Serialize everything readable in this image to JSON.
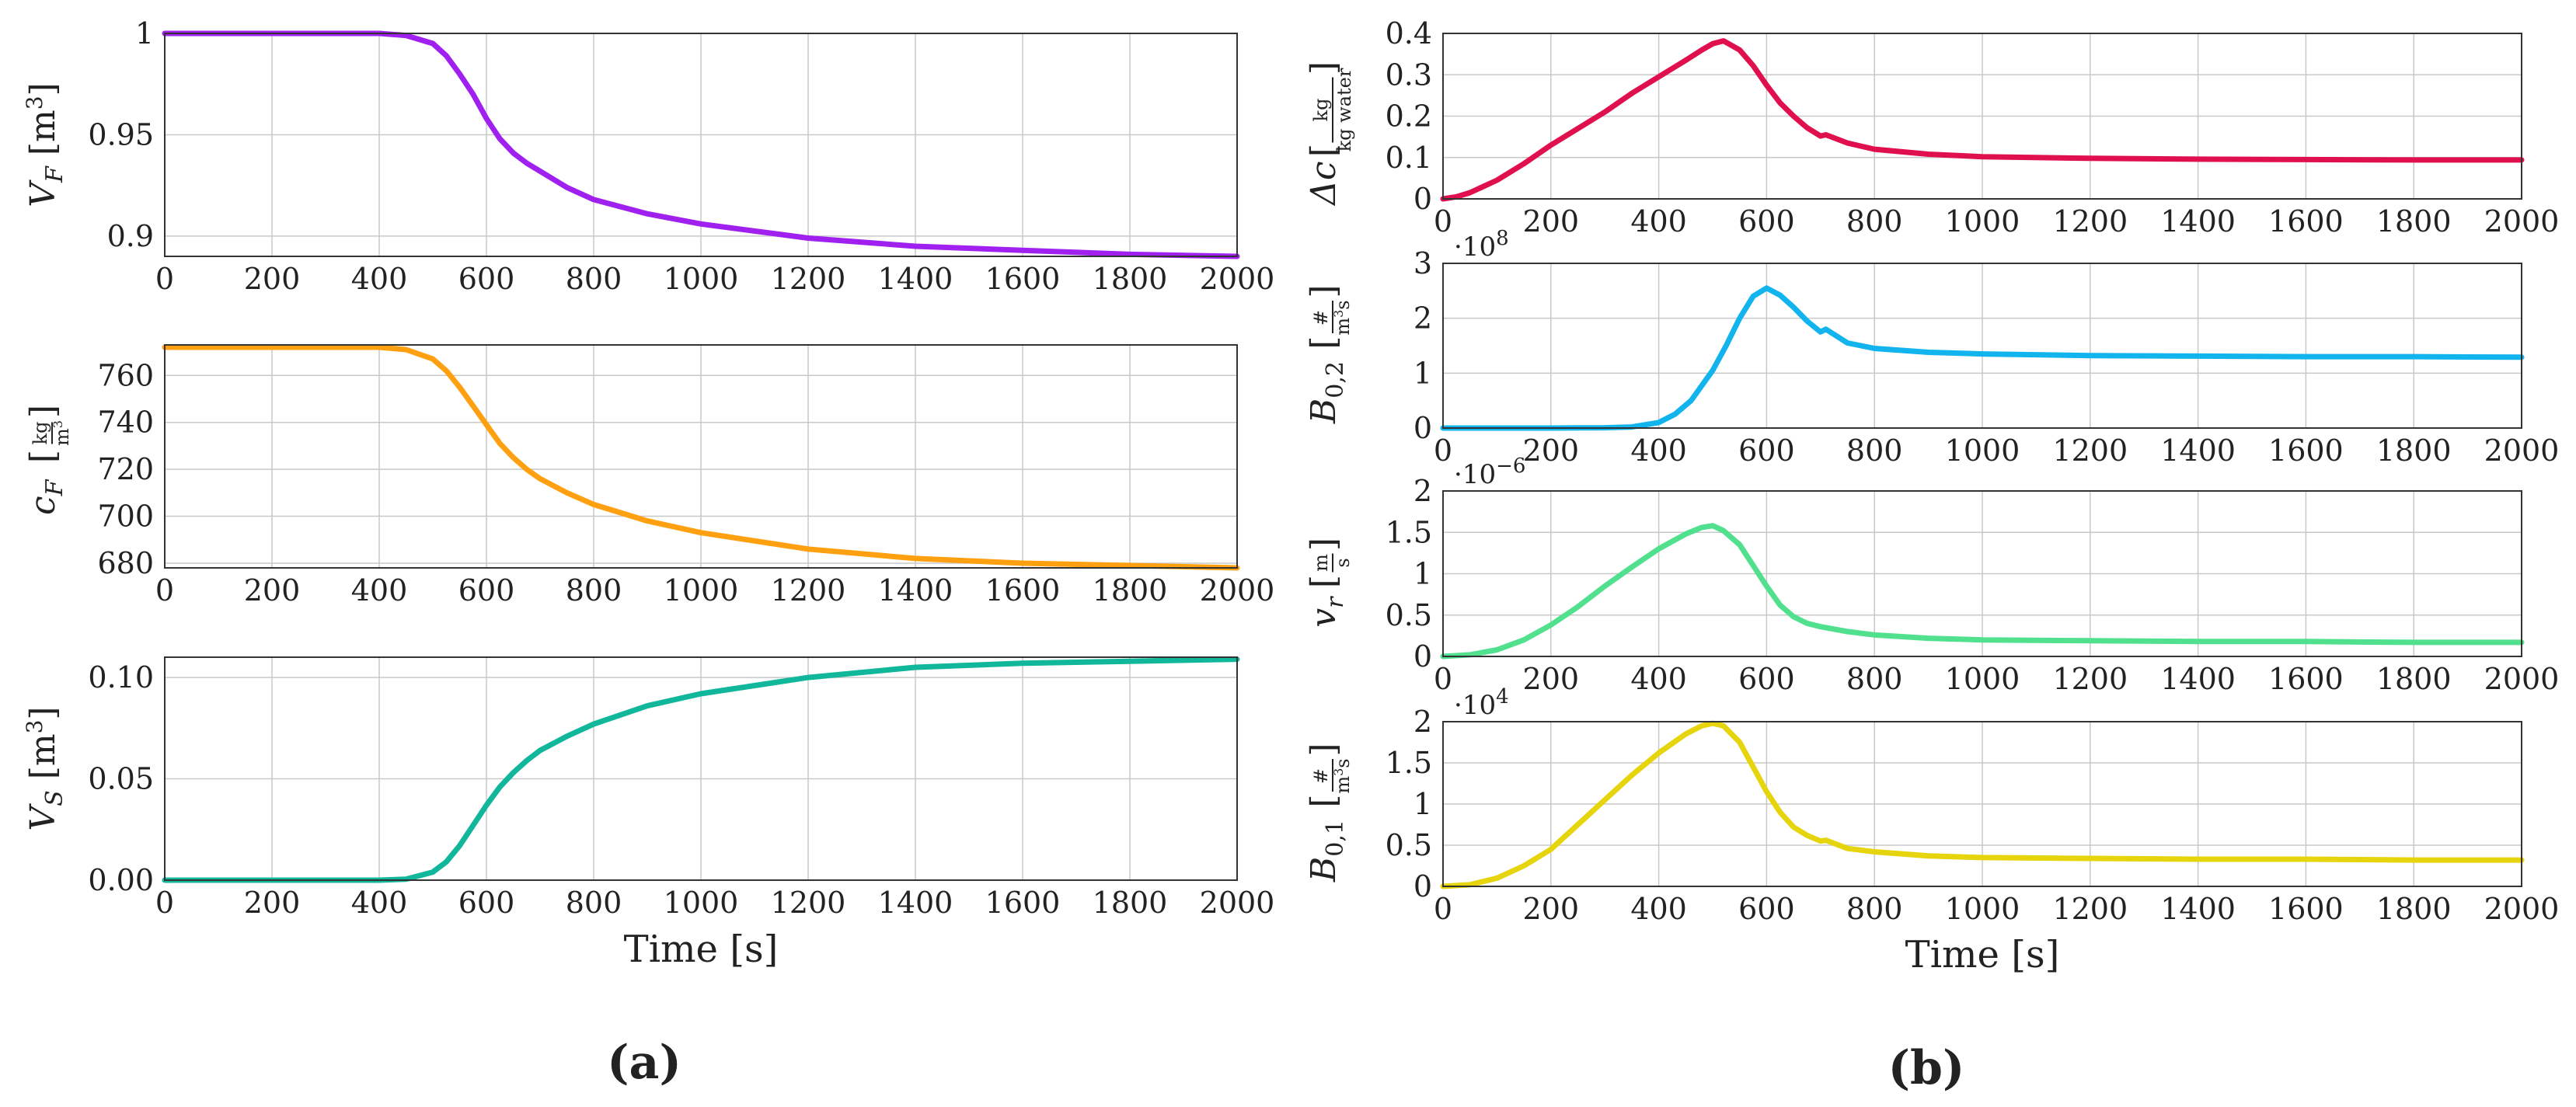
{
  "figure": {
    "panel_labels": [
      "(a)",
      "(b)"
    ],
    "x_title": "Time [s]",
    "colors": {
      "VF": "#a020f0",
      "cF": "#ffa010",
      "VS": "#10b79b",
      "dc": "#e0104e",
      "B02": "#12b4ee",
      "vr": "#50e08e",
      "B01": "#e6d40c",
      "grid": "#c8c8c8",
      "axis": "#333333"
    }
  },
  "chart_data": [
    {
      "id": "VF",
      "type": "line",
      "panel": "(a)",
      "ylabel": "V_F [m³]",
      "ylabel_parts": [
        "V",
        "F",
        "[m",
        "3",
        "]"
      ],
      "xlim": [
        0,
        2000
      ],
      "ylim": [
        0.89,
        1.0
      ],
      "xticks": [
        "0",
        "200",
        "400",
        "600",
        "800",
        "1000",
        "1200",
        "1400",
        "1600",
        "1800",
        "2000"
      ],
      "yticks": [
        {
          "v": 0.9,
          "label": "0.9"
        },
        {
          "v": 0.95,
          "label": "0.95"
        },
        {
          "v": 1.0,
          "label": "1"
        }
      ],
      "x": [
        0,
        100,
        200,
        300,
        400,
        450,
        500,
        525,
        550,
        575,
        600,
        625,
        650,
        675,
        700,
        750,
        800,
        900,
        1000,
        1200,
        1400,
        1600,
        1800,
        2000
      ],
      "y": [
        1.0,
        1.0,
        1.0,
        1.0,
        1.0,
        0.999,
        0.995,
        0.989,
        0.98,
        0.97,
        0.958,
        0.948,
        0.941,
        0.936,
        0.932,
        0.924,
        0.918,
        0.911,
        0.906,
        0.899,
        0.895,
        0.893,
        0.891,
        0.89
      ]
    },
    {
      "id": "cF",
      "type": "line",
      "panel": "(a)",
      "ylabel": "c_F [kg/m³]",
      "ylabel_parts": [
        "c",
        "F",
        "kg",
        "m",
        "3"
      ],
      "xlim": [
        0,
        2000
      ],
      "ylim": [
        678,
        773
      ],
      "xticks": [
        "0",
        "200",
        "400",
        "600",
        "800",
        "1000",
        "1200",
        "1400",
        "1600",
        "1800",
        "2000"
      ],
      "yticks": [
        {
          "v": 680,
          "label": "680"
        },
        {
          "v": 700,
          "label": "700"
        },
        {
          "v": 720,
          "label": "720"
        },
        {
          "v": 740,
          "label": "740"
        },
        {
          "v": 760,
          "label": "760"
        }
      ],
      "x": [
        0,
        100,
        200,
        300,
        400,
        450,
        500,
        525,
        550,
        575,
        600,
        625,
        650,
        675,
        700,
        750,
        800,
        900,
        1000,
        1200,
        1400,
        1600,
        1800,
        2000
      ],
      "y": [
        772,
        772,
        772,
        772,
        772,
        771,
        767,
        762,
        755,
        747,
        739,
        731,
        725,
        720,
        716,
        710,
        705,
        698,
        693,
        686,
        682,
        680,
        679,
        678
      ]
    },
    {
      "id": "VS",
      "type": "line",
      "panel": "(a)",
      "ylabel": "V_S [m³]",
      "ylabel_parts": [
        "V",
        "S",
        "[m",
        "3",
        "]"
      ],
      "xlim": [
        0,
        2000
      ],
      "ylim": [
        0,
        0.11
      ],
      "xticks": [
        "0",
        "200",
        "400",
        "600",
        "800",
        "1000",
        "1200",
        "1400",
        "1600",
        "1800",
        "2000"
      ],
      "yticks": [
        {
          "v": 0.0,
          "label": "0.00"
        },
        {
          "v": 0.05,
          "label": "0.05"
        },
        {
          "v": 0.1,
          "label": "0.10"
        }
      ],
      "x": [
        0,
        100,
        200,
        300,
        400,
        450,
        500,
        525,
        550,
        575,
        600,
        625,
        650,
        675,
        700,
        750,
        800,
        900,
        1000,
        1200,
        1400,
        1600,
        1800,
        2000
      ],
      "y": [
        0,
        0,
        0,
        0,
        0,
        0.0005,
        0.004,
        0.009,
        0.017,
        0.027,
        0.037,
        0.046,
        0.053,
        0.059,
        0.064,
        0.071,
        0.077,
        0.086,
        0.092,
        0.1,
        0.105,
        0.107,
        0.108,
        0.109
      ]
    },
    {
      "id": "dc",
      "type": "line",
      "panel": "(b)",
      "ylabel": "Δc [kg/kg water]",
      "ylabel_parts": [
        "Δc",
        "kg",
        "kg water"
      ],
      "xlim": [
        0,
        2000
      ],
      "ylim": [
        0,
        0.4
      ],
      "xticks": [
        "0",
        "200",
        "400",
        "600",
        "800",
        "1000",
        "1200",
        "1400",
        "1600",
        "1800",
        "2000"
      ],
      "yticks": [
        {
          "v": 0,
          "label": "0"
        },
        {
          "v": 0.1,
          "label": "0.1"
        },
        {
          "v": 0.2,
          "label": "0.2"
        },
        {
          "v": 0.3,
          "label": "0.3"
        },
        {
          "v": 0.4,
          "label": "0.4"
        }
      ],
      "x": [
        0,
        25,
        50,
        100,
        150,
        200,
        250,
        300,
        350,
        400,
        450,
        480,
        500,
        520,
        550,
        575,
        600,
        625,
        650,
        675,
        700,
        710,
        750,
        800,
        900,
        1000,
        1200,
        1400,
        1600,
        1800,
        2000
      ],
      "y": [
        0,
        0.005,
        0.015,
        0.045,
        0.085,
        0.13,
        0.17,
        0.21,
        0.255,
        0.295,
        0.335,
        0.36,
        0.375,
        0.382,
        0.36,
        0.322,
        0.275,
        0.232,
        0.2,
        0.172,
        0.152,
        0.155,
        0.135,
        0.12,
        0.108,
        0.102,
        0.098,
        0.096,
        0.095,
        0.094,
        0.094
      ]
    },
    {
      "id": "B02",
      "type": "line",
      "panel": "(b)",
      "ylabel": "B_0,2 [#/m³s]",
      "ylabel_parts": [
        "B",
        "0,2",
        "#",
        "m",
        "3",
        "s"
      ],
      "exponent_base": "·10",
      "exponent": "8",
      "xlim": [
        0,
        2000
      ],
      "ylim": [
        0,
        3
      ],
      "xticks": [
        "0",
        "200",
        "400",
        "600",
        "800",
        "1000",
        "1200",
        "1400",
        "1600",
        "1800",
        "2000"
      ],
      "yticks": [
        {
          "v": 0,
          "label": "0"
        },
        {
          "v": 1,
          "label": "1"
        },
        {
          "v": 2,
          "label": "2"
        },
        {
          "v": 3,
          "label": "3"
        }
      ],
      "x": [
        0,
        100,
        200,
        300,
        350,
        400,
        430,
        460,
        500,
        525,
        550,
        575,
        600,
        625,
        650,
        675,
        700,
        710,
        750,
        800,
        900,
        1000,
        1200,
        1400,
        1600,
        1800,
        2000
      ],
      "y": [
        0,
        0,
        0,
        0.005,
        0.02,
        0.1,
        0.25,
        0.5,
        1.05,
        1.5,
        2.0,
        2.4,
        2.55,
        2.42,
        2.2,
        1.95,
        1.75,
        1.8,
        1.55,
        1.45,
        1.38,
        1.35,
        1.32,
        1.31,
        1.3,
        1.3,
        1.29
      ]
    },
    {
      "id": "vr",
      "type": "line",
      "panel": "(b)",
      "ylabel": "v_r [m/s]",
      "ylabel_parts": [
        "v",
        "r",
        "m",
        "s"
      ],
      "exponent_base": "·10",
      "exponent": "−6",
      "xlim": [
        0,
        2000
      ],
      "ylim": [
        0,
        2
      ],
      "xticks": [
        "0",
        "200",
        "400",
        "600",
        "800",
        "1000",
        "1200",
        "1400",
        "1600",
        "1800",
        "2000"
      ],
      "yticks": [
        {
          "v": 0,
          "label": "0"
        },
        {
          "v": 0.5,
          "label": "0.5"
        },
        {
          "v": 1,
          "label": "1"
        },
        {
          "v": 1.5,
          "label": "1.5"
        },
        {
          "v": 2,
          "label": "2"
        }
      ],
      "x": [
        0,
        50,
        100,
        150,
        200,
        250,
        300,
        350,
        400,
        450,
        480,
        500,
        520,
        550,
        575,
        600,
        625,
        650,
        675,
        700,
        750,
        800,
        900,
        1000,
        1200,
        1400,
        1600,
        1800,
        2000
      ],
      "y": [
        0,
        0.02,
        0.08,
        0.2,
        0.38,
        0.6,
        0.85,
        1.08,
        1.3,
        1.48,
        1.56,
        1.58,
        1.52,
        1.35,
        1.1,
        0.85,
        0.62,
        0.48,
        0.4,
        0.36,
        0.3,
        0.26,
        0.22,
        0.2,
        0.19,
        0.18,
        0.18,
        0.17,
        0.17
      ]
    },
    {
      "id": "B01",
      "type": "line",
      "panel": "(b)",
      "ylabel": "B_0,1 [#/m³s]",
      "ylabel_parts": [
        "B",
        "0,1",
        "#",
        "m",
        "3",
        "s"
      ],
      "exponent_base": "·10",
      "exponent": "4",
      "xlim": [
        0,
        2000
      ],
      "ylim": [
        0,
        2
      ],
      "xticks": [
        "0",
        "200",
        "400",
        "600",
        "800",
        "1000",
        "1200",
        "1400",
        "1600",
        "1800",
        "2000"
      ],
      "yticks": [
        {
          "v": 0,
          "label": "0"
        },
        {
          "v": 0.5,
          "label": "0.5"
        },
        {
          "v": 1,
          "label": "1"
        },
        {
          "v": 1.5,
          "label": "1.5"
        },
        {
          "v": 2,
          "label": "2"
        }
      ],
      "x": [
        0,
        50,
        100,
        150,
        200,
        250,
        300,
        350,
        400,
        450,
        480,
        500,
        520,
        550,
        575,
        600,
        625,
        650,
        675,
        700,
        710,
        750,
        800,
        900,
        1000,
        1200,
        1400,
        1600,
        1800,
        2000
      ],
      "y": [
        0,
        0.02,
        0.1,
        0.25,
        0.45,
        0.75,
        1.05,
        1.35,
        1.62,
        1.85,
        1.95,
        1.98,
        1.95,
        1.75,
        1.45,
        1.15,
        0.9,
        0.72,
        0.62,
        0.55,
        0.56,
        0.46,
        0.42,
        0.37,
        0.35,
        0.34,
        0.33,
        0.33,
        0.32,
        0.32
      ]
    }
  ]
}
